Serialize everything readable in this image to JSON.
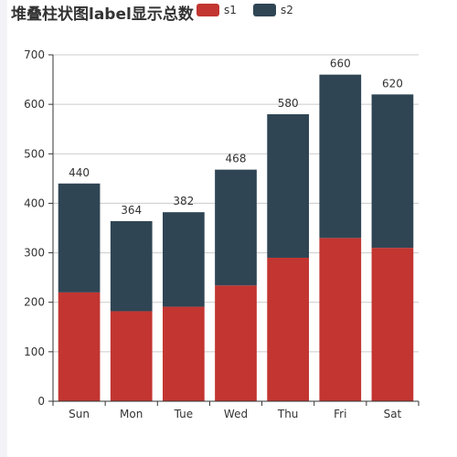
{
  "chart_data": {
    "type": "bar",
    "stacked": true,
    "title": "堆叠柱状图label显示总数",
    "categories": [
      "Sun",
      "Mon",
      "Tue",
      "Wed",
      "Thu",
      "Fri",
      "Sat"
    ],
    "series": [
      {
        "name": "s1",
        "color": "#c23531",
        "values": [
          220,
          182,
          191,
          234,
          290,
          330,
          310
        ]
      },
      {
        "name": "s2",
        "color": "#2f4554",
        "values": [
          220,
          182,
          191,
          234,
          290,
          330,
          310
        ]
      }
    ],
    "totals": [
      "440",
      "364",
      "382",
      "468",
      "580",
      "660",
      "620"
    ],
    "ylim": [
      0,
      700
    ],
    "yticks": [
      "0",
      "100",
      "200",
      "300",
      "400",
      "500",
      "600",
      "700"
    ],
    "grid": true,
    "legend": "top"
  }
}
